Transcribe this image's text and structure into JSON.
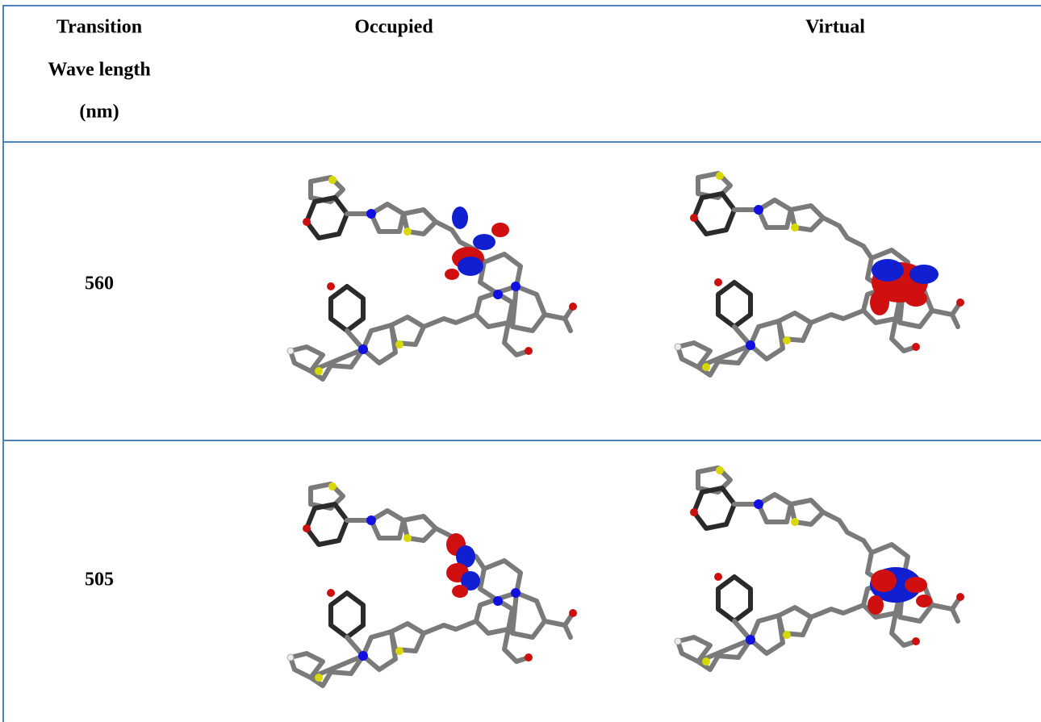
{
  "table": {
    "header": {
      "transition": [
        "Transition",
        "Wave length",
        "(nm)"
      ],
      "occupied": "Occupied",
      "virtual": "Virtual"
    },
    "rows": [
      {
        "wavelength": "560"
      },
      {
        "wavelength": "505"
      }
    ]
  }
}
